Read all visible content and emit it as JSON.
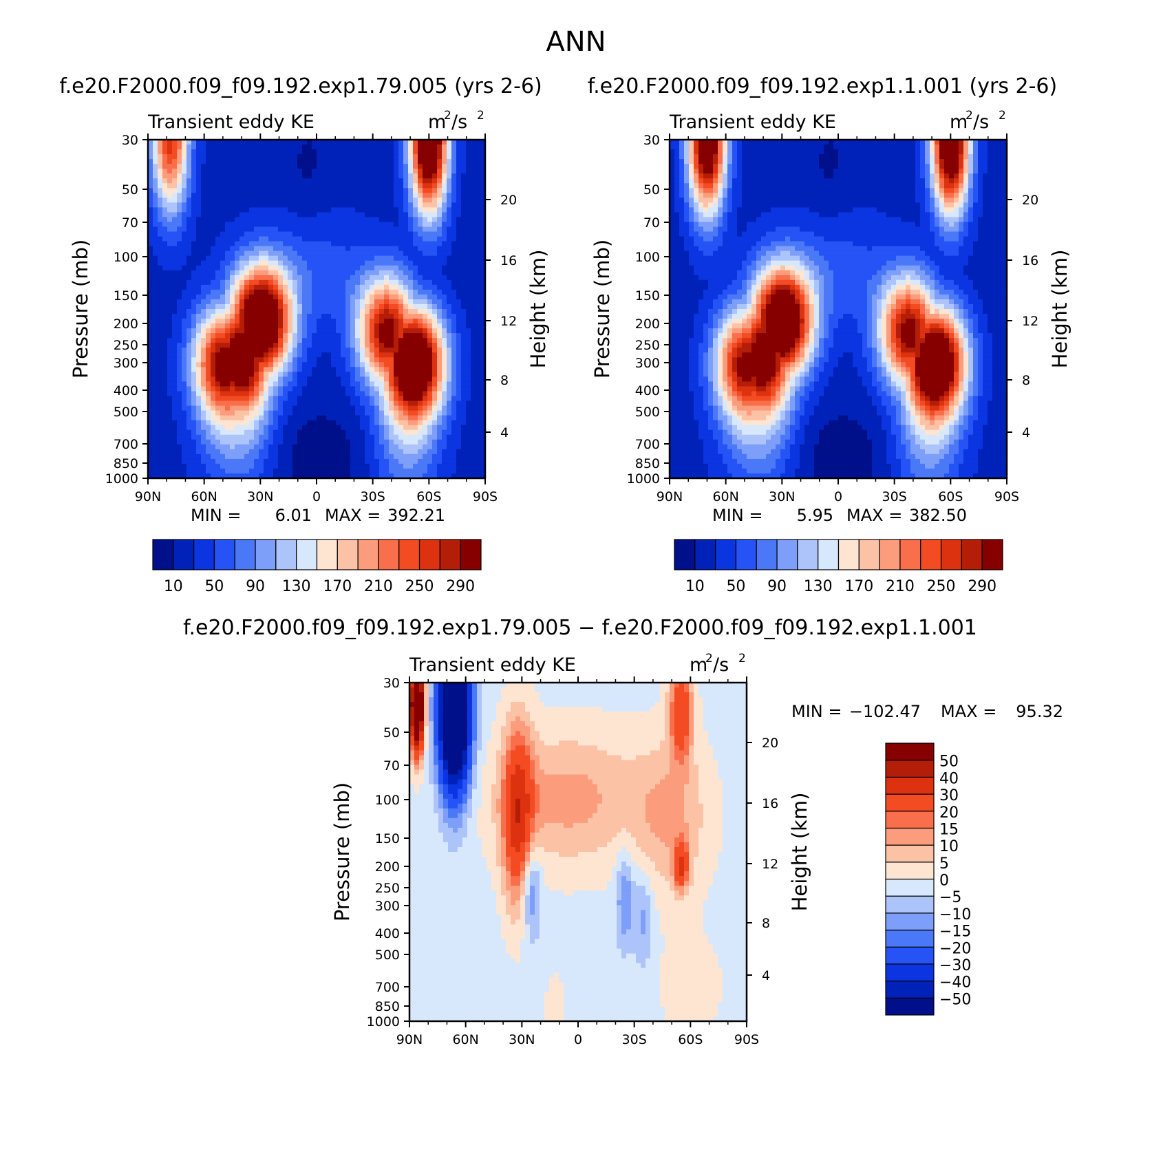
{
  "title": "ANN",
  "chart_data": [
    {
      "type": "heatmap",
      "case": "f.e20.F2000.f09_f09.192.exp1.79.005 (yrs 2-6)",
      "variable": "Transient eddy KE",
      "units": "m²/s²",
      "units_base": "m",
      "units_mid": "/s",
      "units_sup": "2",
      "xlabel": "",
      "ylabel": "Pressure (mb)",
      "ylabel_right": "Height (km)",
      "xticks": [
        "90N",
        "60N",
        "30N",
        "0",
        "30S",
        "60S",
        "90S"
      ],
      "yticks": [
        "30",
        "50",
        "70",
        "100",
        "150",
        "200",
        "250",
        "300",
        "400",
        "500",
        "700",
        "850",
        "1000"
      ],
      "yticks_right": [
        "20",
        "16",
        "12",
        "8",
        "4"
      ],
      "xlim": [
        -90,
        90
      ],
      "ylim": [
        1000,
        30
      ],
      "min_label": "MIN =",
      "min": "6.01",
      "max_label": "MAX =",
      "max": "392.21",
      "levels": [
        "10",
        "50",
        "90",
        "130",
        "170",
        "210",
        "250",
        "290"
      ],
      "colors": [
        "#00108a",
        "#0022b8",
        "#0a35e0",
        "#2653f5",
        "#4a78f7",
        "#7d9ef9",
        "#adc4fb",
        "#d8e8fc",
        "#fde5d2",
        "#fcc2a6",
        "#fb9c7c",
        "#f96f4c",
        "#f34b22",
        "#dc320f",
        "#b41e08",
        "#870000"
      ],
      "centers": [
        {
          "lat": 30,
          "p": 200,
          "v": 390
        },
        {
          "lat": 40,
          "p": 280,
          "v": 330
        },
        {
          "lat": 50,
          "p": 300,
          "v": 290
        },
        {
          "lat": -52,
          "p": 300,
          "v": 390
        },
        {
          "lat": -38,
          "p": 220,
          "v": 300
        },
        {
          "lat": -60,
          "p": 30,
          "v": 390
        },
        {
          "lat": 78,
          "p": 30,
          "v": 260
        }
      ]
    },
    {
      "type": "heatmap",
      "case": "f.e20.F2000.f09_f09.192.exp1.1.001 (yrs 2-6)",
      "variable": "Transient eddy KE",
      "units": "m²/s²",
      "units_base": "m",
      "units_mid": "/s",
      "units_sup": "2",
      "xlabel": "",
      "ylabel": "Pressure (mb)",
      "ylabel_right": "Height (km)",
      "xticks": [
        "90N",
        "60N",
        "30N",
        "0",
        "30S",
        "60S",
        "90S"
      ],
      "yticks": [
        "30",
        "50",
        "70",
        "100",
        "150",
        "200",
        "250",
        "300",
        "400",
        "500",
        "700",
        "850",
        "1000"
      ],
      "yticks_right": [
        "20",
        "16",
        "12",
        "8",
        "4"
      ],
      "xlim": [
        -90,
        90
      ],
      "ylim": [
        1000,
        30
      ],
      "min_label": "MIN =",
      "min": "5.95",
      "max_label": "MAX =",
      "max": "382.50",
      "levels": [
        "10",
        "50",
        "90",
        "130",
        "170",
        "210",
        "250",
        "290"
      ],
      "colors": [
        "#00108a",
        "#0022b8",
        "#0a35e0",
        "#2653f5",
        "#4a78f7",
        "#7d9ef9",
        "#adc4fb",
        "#d8e8fc",
        "#fde5d2",
        "#fcc2a6",
        "#fb9c7c",
        "#f96f4c",
        "#f34b22",
        "#dc320f",
        "#b41e08",
        "#870000"
      ],
      "centers": [
        {
          "lat": 30,
          "p": 200,
          "v": 380
        },
        {
          "lat": 40,
          "p": 280,
          "v": 320
        },
        {
          "lat": 50,
          "p": 300,
          "v": 280
        },
        {
          "lat": -52,
          "p": 300,
          "v": 380
        },
        {
          "lat": -38,
          "p": 220,
          "v": 300
        },
        {
          "lat": -60,
          "p": 30,
          "v": 380
        },
        {
          "lat": 70,
          "p": 30,
          "v": 360
        }
      ]
    },
    {
      "type": "heatmap",
      "case": "f.e20.F2000.f09_f09.192.exp1.79.005 − f.e20.F2000.f09_f09.192.exp1.1.001",
      "variable": "Transient eddy KE",
      "units": "m²/s²",
      "units_base": "m",
      "units_mid": "/s",
      "units_sup": "2",
      "xlabel": "",
      "ylabel": "Pressure (mb)",
      "ylabel_right": "Height (km)",
      "xticks": [
        "90N",
        "60N",
        "30N",
        "0",
        "30S",
        "60S",
        "90S"
      ],
      "yticks": [
        "30",
        "50",
        "70",
        "100",
        "150",
        "200",
        "250",
        "300",
        "400",
        "500",
        "700",
        "850",
        "1000"
      ],
      "yticks_right": [
        "20",
        "16",
        "12",
        "8",
        "4"
      ],
      "xlim": [
        -90,
        90
      ],
      "ylim": [
        1000,
        30
      ],
      "min_label": "MIN =",
      "min": "−102.47",
      "max_label": "MAX =",
      "max": "95.32",
      "levels": [
        "−50",
        "−40",
        "−30",
        "−20",
        "−15",
        "−10",
        "−5",
        "0",
        "5",
        "10",
        "15",
        "20",
        "30",
        "40",
        "50"
      ],
      "colors": [
        "#00108a",
        "#0022b8",
        "#0a35e0",
        "#2653f5",
        "#4a78f7",
        "#7d9ef9",
        "#adc4fb",
        "#d8e8fc",
        "#fde5d2",
        "#fcc2a6",
        "#fb9c7c",
        "#f96f4c",
        "#f34b22",
        "#dc320f",
        "#b41e08",
        "#870000"
      ]
    }
  ]
}
